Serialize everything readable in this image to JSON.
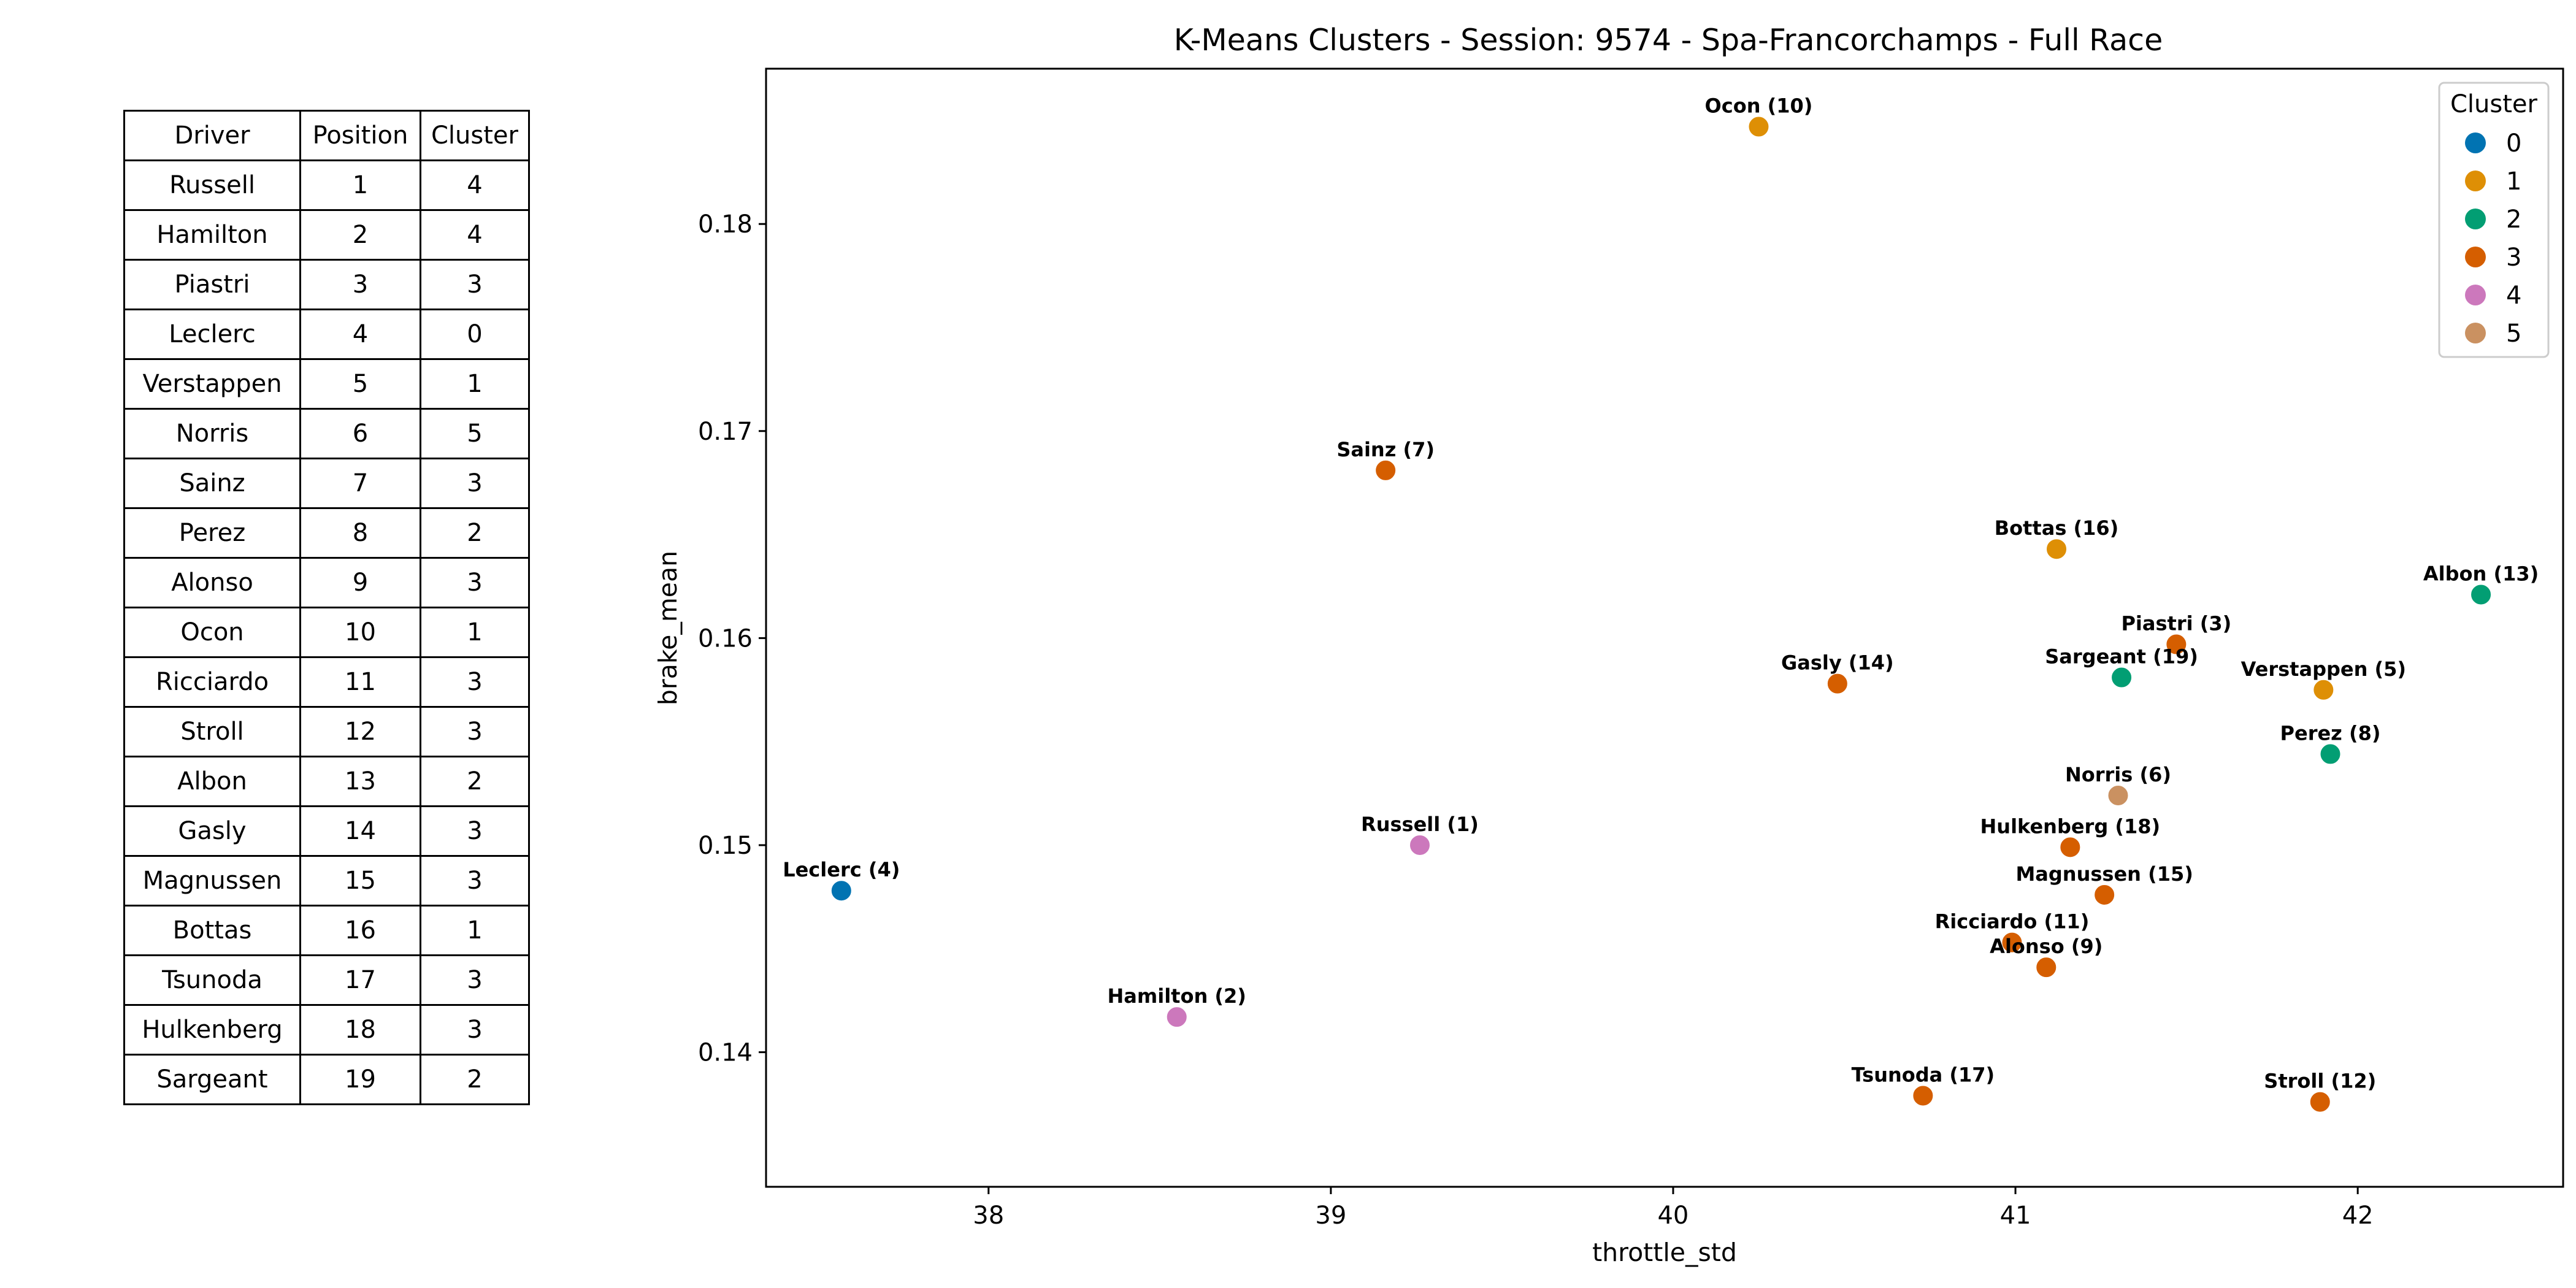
{
  "table": {
    "headers": [
      "Driver",
      "Position",
      "Cluster"
    ],
    "rows": [
      [
        "Russell",
        "1",
        "4"
      ],
      [
        "Hamilton",
        "2",
        "4"
      ],
      [
        "Piastri",
        "3",
        "3"
      ],
      [
        "Leclerc",
        "4",
        "0"
      ],
      [
        "Verstappen",
        "5",
        "1"
      ],
      [
        "Norris",
        "6",
        "5"
      ],
      [
        "Sainz",
        "7",
        "3"
      ],
      [
        "Perez",
        "8",
        "2"
      ],
      [
        "Alonso",
        "9",
        "3"
      ],
      [
        "Ocon",
        "10",
        "1"
      ],
      [
        "Ricciardo",
        "11",
        "3"
      ],
      [
        "Stroll",
        "12",
        "3"
      ],
      [
        "Albon",
        "13",
        "2"
      ],
      [
        "Gasly",
        "14",
        "3"
      ],
      [
        "Magnussen",
        "15",
        "3"
      ],
      [
        "Bottas",
        "16",
        "1"
      ],
      [
        "Tsunoda",
        "17",
        "3"
      ],
      [
        "Hulkenberg",
        "18",
        "3"
      ],
      [
        "Sargeant",
        "19",
        "2"
      ]
    ]
  },
  "chart_data": {
    "type": "scatter",
    "title": "K-Means Clusters - Session: 9574 - Spa-Francorchamps - Full Race",
    "xlabel": "throttle_std",
    "ylabel": "brake_mean",
    "xlim": [
      37.35,
      42.6
    ],
    "ylim": [
      0.1335,
      0.1875
    ],
    "xticks": [
      38,
      39,
      40,
      41,
      42
    ],
    "xtick_labels": [
      "38",
      "39",
      "40",
      "41",
      "42"
    ],
    "yticks": [
      0.14,
      0.15,
      0.16,
      0.17,
      0.18
    ],
    "ytick_labels": [
      "0.14",
      "0.15",
      "0.16",
      "0.17",
      "0.18"
    ],
    "grid": false,
    "legend": {
      "title": "Cluster",
      "position": "top-right",
      "entries": [
        {
          "label": "0",
          "color": "#0173b2"
        },
        {
          "label": "1",
          "color": "#de8f05"
        },
        {
          "label": "2",
          "color": "#029e73"
        },
        {
          "label": "3",
          "color": "#d55e00"
        },
        {
          "label": "4",
          "color": "#cc78bc"
        },
        {
          "label": "5",
          "color": "#ca9161"
        }
      ]
    },
    "points": [
      {
        "label": "Russell (1)",
        "x": 39.26,
        "y": 0.15,
        "cluster": 4
      },
      {
        "label": "Hamilton (2)",
        "x": 38.55,
        "y": 0.1417,
        "cluster": 4
      },
      {
        "label": "Piastri (3)",
        "x": 41.47,
        "y": 0.1597,
        "cluster": 3
      },
      {
        "label": "Leclerc (4)",
        "x": 37.57,
        "y": 0.1478,
        "cluster": 0
      },
      {
        "label": "Verstappen (5)",
        "x": 41.9,
        "y": 0.1575,
        "cluster": 1
      },
      {
        "label": "Norris (6)",
        "x": 41.3,
        "y": 0.1524,
        "cluster": 5
      },
      {
        "label": "Sainz (7)",
        "x": 39.16,
        "y": 0.1681,
        "cluster": 3
      },
      {
        "label": "Perez (8)",
        "x": 41.92,
        "y": 0.1544,
        "cluster": 2
      },
      {
        "label": "Alonso (9)",
        "x": 41.09,
        "y": 0.1441,
        "cluster": 3
      },
      {
        "label": "Ocon (10)",
        "x": 40.25,
        "y": 0.1847,
        "cluster": 1
      },
      {
        "label": "Ricciardo (11)",
        "x": 40.99,
        "y": 0.1453,
        "cluster": 3
      },
      {
        "label": "Stroll (12)",
        "x": 41.89,
        "y": 0.1376,
        "cluster": 3
      },
      {
        "label": "Albon (13)",
        "x": 42.36,
        "y": 0.1621,
        "cluster": 2
      },
      {
        "label": "Gasly (14)",
        "x": 40.48,
        "y": 0.1578,
        "cluster": 3
      },
      {
        "label": "Magnussen (15)",
        "x": 41.26,
        "y": 0.1476,
        "cluster": 3
      },
      {
        "label": "Bottas (16)",
        "x": 41.12,
        "y": 0.1643,
        "cluster": 1
      },
      {
        "label": "Tsunoda (17)",
        "x": 40.73,
        "y": 0.1379,
        "cluster": 3
      },
      {
        "label": "Hulkenberg (18)",
        "x": 41.16,
        "y": 0.1499,
        "cluster": 3
      },
      {
        "label": "Sargeant (19)",
        "x": 41.31,
        "y": 0.1581,
        "cluster": 2
      }
    ]
  }
}
